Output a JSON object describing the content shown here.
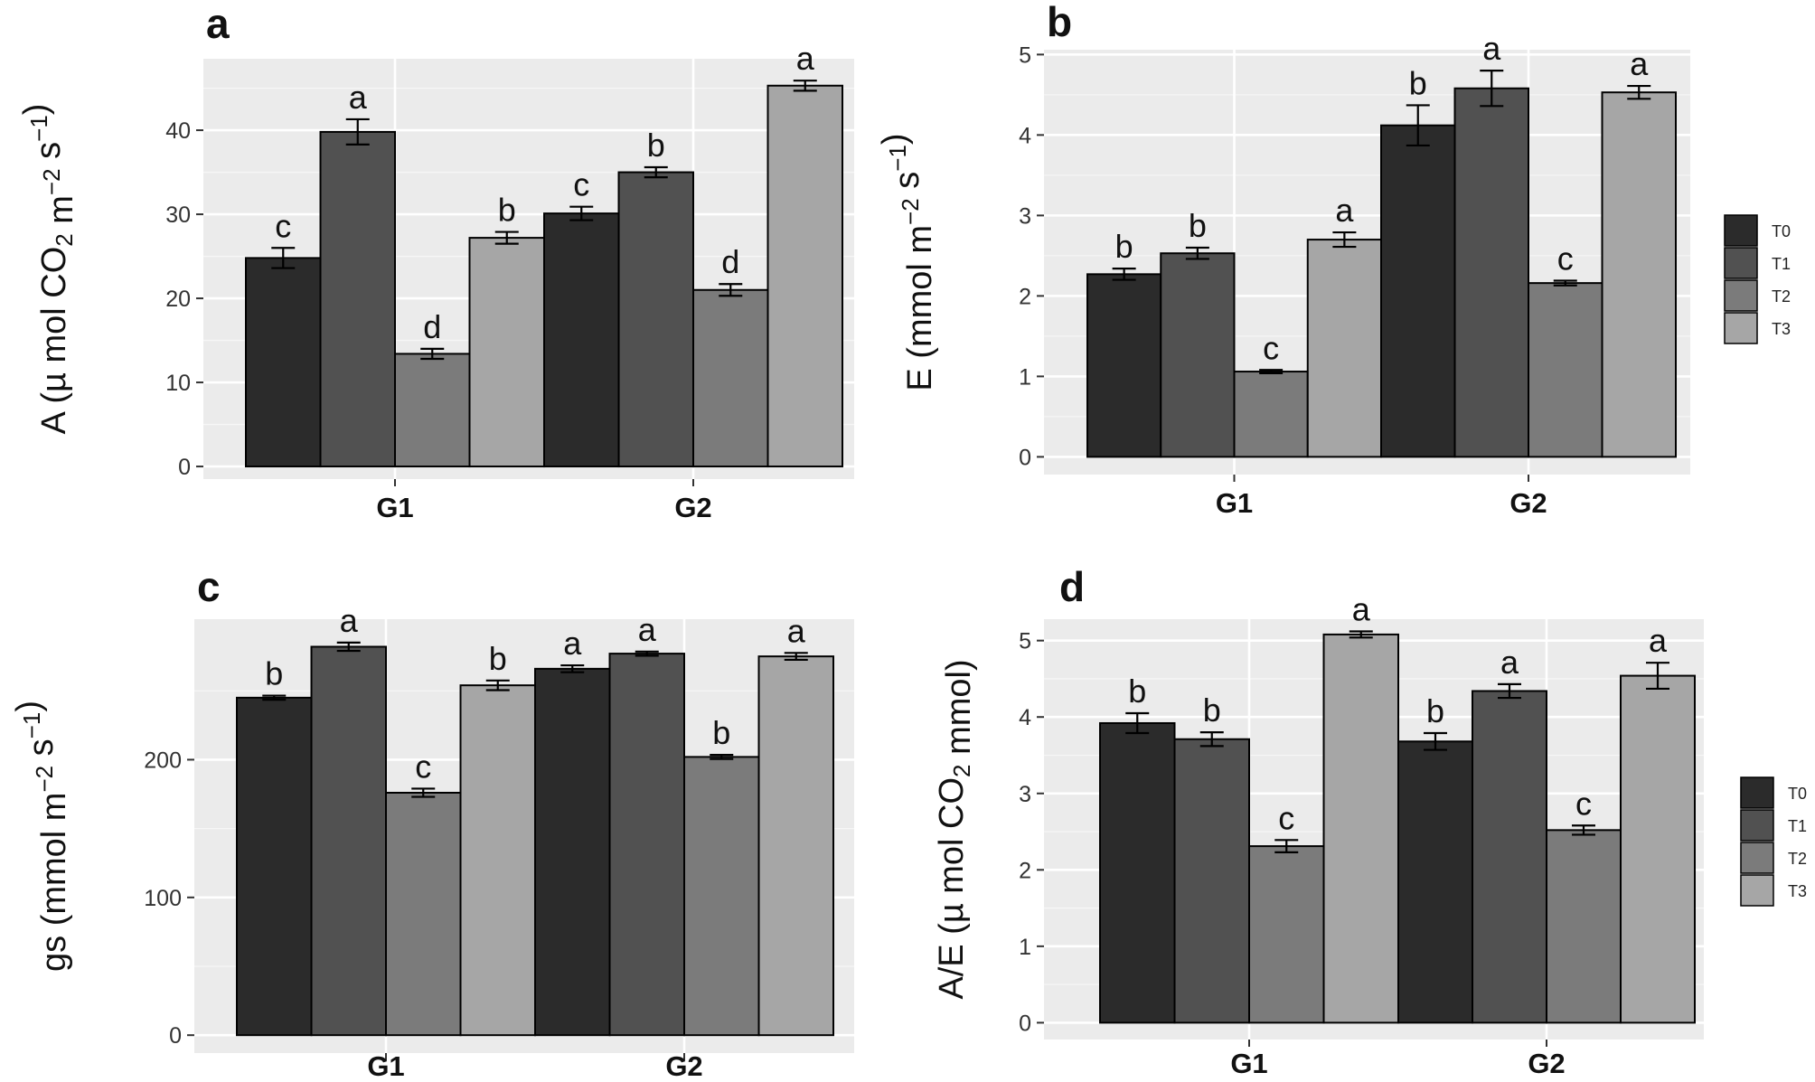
{
  "chart_data": [
    {
      "type": "bar",
      "panel": "a",
      "categories": [
        "G1",
        "G2"
      ],
      "ylabel": "A  (µ mol CO2 m−2 s−1)",
      "ylim": [
        -1.5,
        48.5
      ],
      "yticks": [
        0,
        10,
        20,
        30,
        40
      ],
      "grid": true,
      "series": [
        {
          "name": "T0",
          "color": "#2b2b2b",
          "values": [
            24.8,
            30.1
          ],
          "errors": [
            1.2,
            0.8
          ],
          "letters": [
            "c",
            "c"
          ]
        },
        {
          "name": "T1",
          "color": "#515151",
          "values": [
            39.8,
            35.0
          ],
          "errors": [
            1.5,
            0.6
          ],
          "letters": [
            "a",
            "b"
          ]
        },
        {
          "name": "T2",
          "color": "#7b7b7b",
          "values": [
            13.4,
            21.0
          ],
          "errors": [
            0.6,
            0.7
          ],
          "letters": [
            "d",
            "d"
          ]
        },
        {
          "name": "T3",
          "color": "#a6a6a6",
          "values": [
            27.2,
            45.3
          ],
          "errors": [
            0.7,
            0.6
          ],
          "letters": [
            "b",
            "a"
          ]
        }
      ]
    },
    {
      "type": "bar",
      "panel": "b",
      "categories": [
        "G1",
        "G2"
      ],
      "ylabel": "E  (mmol m−2 s−1)",
      "ylim": [
        -0.22,
        5.06
      ],
      "yticks": [
        0,
        1,
        2,
        3,
        4,
        5
      ],
      "grid": true,
      "legend": {
        "position": "right",
        "entries": [
          "T0",
          "T1",
          "T2",
          "T3"
        ]
      },
      "series": [
        {
          "name": "T0",
          "color": "#2b2b2b",
          "values": [
            2.27,
            4.12
          ],
          "errors": [
            0.07,
            0.25
          ],
          "letters": [
            "b",
            "b"
          ]
        },
        {
          "name": "T1",
          "color": "#515151",
          "values": [
            2.53,
            4.58
          ],
          "errors": [
            0.07,
            0.22
          ],
          "letters": [
            "b",
            "a"
          ]
        },
        {
          "name": "T2",
          "color": "#7b7b7b",
          "values": [
            1.06,
            2.16
          ],
          "errors": [
            0.02,
            0.03
          ],
          "letters": [
            "c",
            "c"
          ]
        },
        {
          "name": "T3",
          "color": "#a6a6a6",
          "values": [
            2.7,
            4.53
          ],
          "errors": [
            0.09,
            0.08
          ],
          "letters": [
            "a",
            "a"
          ]
        }
      ]
    },
    {
      "type": "bar",
      "panel": "c",
      "categories": [
        "G1",
        "G2"
      ],
      "ylabel": "gs  (mmol m−2 s−1)",
      "ylim": [
        -13,
        302
      ],
      "yticks": [
        0,
        100,
        200
      ],
      "grid": true,
      "series": [
        {
          "name": "T0",
          "color": "#2b2b2b",
          "values": [
            245,
            266
          ],
          "errors": [
            1.5,
            2.5
          ],
          "letters": [
            "b",
            "a"
          ]
        },
        {
          "name": "T1",
          "color": "#515151",
          "values": [
            282,
            277
          ],
          "errors": [
            3,
            1.5
          ],
          "letters": [
            "a",
            "a"
          ]
        },
        {
          "name": "T2",
          "color": "#7b7b7b",
          "values": [
            176,
            202
          ],
          "errors": [
            3,
            1.5
          ],
          "letters": [
            "c",
            "b"
          ]
        },
        {
          "name": "T3",
          "color": "#a6a6a6",
          "values": [
            254,
            275
          ],
          "errors": [
            3.5,
            2.5
          ],
          "letters": [
            "b",
            "a"
          ]
        }
      ]
    },
    {
      "type": "bar",
      "panel": "d",
      "categories": [
        "G1",
        "G2"
      ],
      "ylabel": "A/E  (µ mol CO2 mmol)",
      "ylim": [
        -0.22,
        5.28
      ],
      "yticks": [
        0,
        1,
        2,
        3,
        4,
        5
      ],
      "grid": true,
      "legend": {
        "position": "right",
        "entries": [
          "T0",
          "T1",
          "T2",
          "T3"
        ]
      },
      "series": [
        {
          "name": "T0",
          "color": "#2b2b2b",
          "values": [
            3.92,
            3.68
          ],
          "errors": [
            0.13,
            0.11
          ],
          "letters": [
            "b",
            "b"
          ]
        },
        {
          "name": "T1",
          "color": "#515151",
          "values": [
            3.71,
            4.34
          ],
          "errors": [
            0.09,
            0.09
          ],
          "letters": [
            "b",
            "a"
          ]
        },
        {
          "name": "T2",
          "color": "#7b7b7b",
          "values": [
            2.31,
            2.52
          ],
          "errors": [
            0.08,
            0.06
          ],
          "letters": [
            "c",
            "c"
          ]
        },
        {
          "name": "T3",
          "color": "#a6a6a6",
          "values": [
            5.08,
            4.54
          ],
          "errors": [
            0.04,
            0.17
          ],
          "letters": [
            "a",
            "a"
          ]
        }
      ]
    }
  ]
}
